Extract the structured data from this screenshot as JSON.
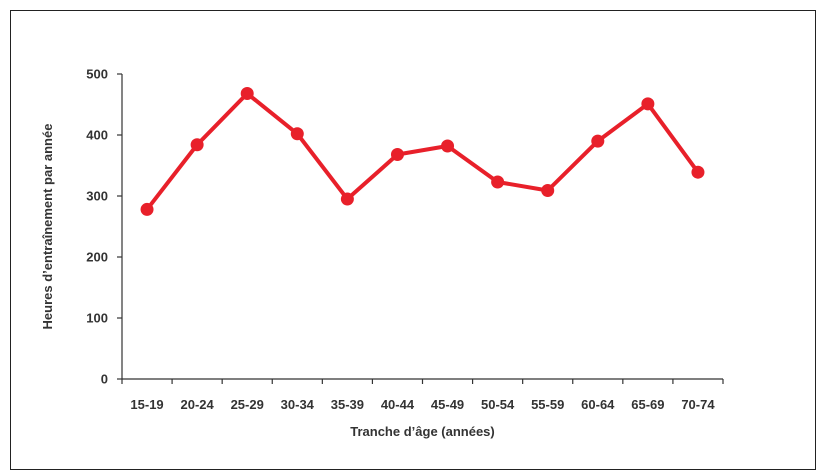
{
  "chart_data": {
    "type": "line",
    "xlabel": "Tranche d’âge (années)",
    "ylabel": "Heures d’entraînement par année",
    "categories": [
      "15-19",
      "20-24",
      "25-29",
      "30-34",
      "35-39",
      "40-44",
      "45-49",
      "50-54",
      "55-59",
      "60-64",
      "65-69",
      "70-74"
    ],
    "series": [
      {
        "values": [
          278,
          384,
          468,
          402,
          295,
          368,
          382,
          323,
          309,
          390,
          451,
          339
        ]
      }
    ],
    "ylim": [
      0,
      500
    ],
    "yticks": [
      "0",
      "100",
      "200",
      "300",
      "400",
      "500"
    ],
    "line_color": "#e8202a",
    "grid": false
  }
}
